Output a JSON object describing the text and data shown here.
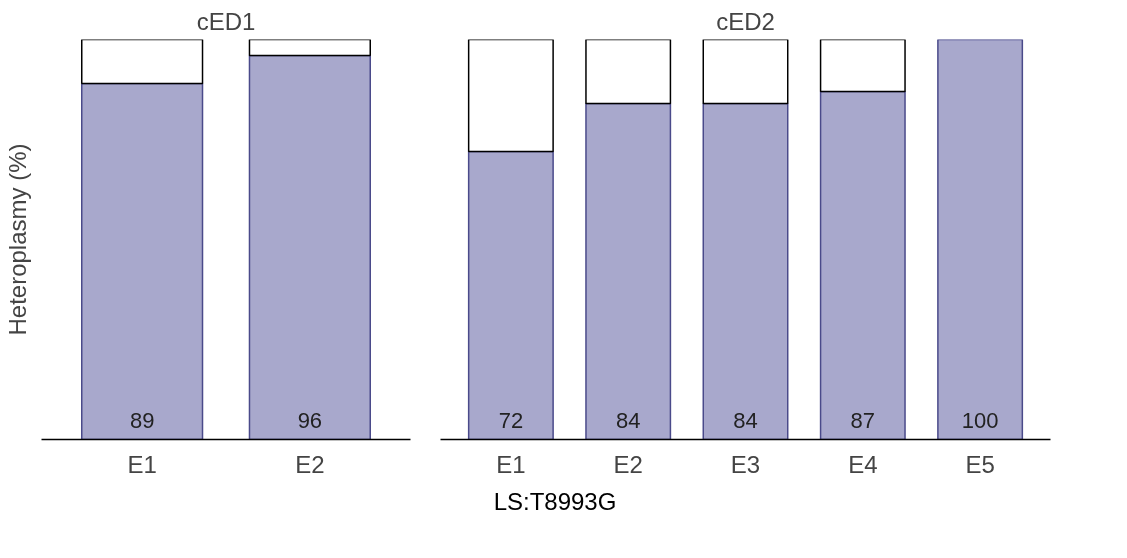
{
  "chart_data": [
    {
      "type": "bar",
      "title": "cED1",
      "ylabel": "Heteroplasmy (%)",
      "categories": [
        "E1",
        "E2"
      ],
      "stacked": true,
      "ylim": [
        0,
        100
      ],
      "tick_labels": "x",
      "grid": false,
      "series": [
        {
          "color": "#a8a8cc",
          "values": [
            89,
            96
          ],
          "value_labels": [
            "89",
            "96"
          ]
        },
        {
          "color": "#ffffff",
          "values": [
            11,
            4
          ]
        }
      ]
    },
    {
      "type": "bar",
      "title": "cED2",
      "categories": [
        "E1",
        "E2",
        "E3",
        "E4",
        "E5"
      ],
      "stacked": true,
      "ylim": [
        0,
        100
      ],
      "tick_labels": "x",
      "grid": false,
      "annotations": [
        "LS:T8993G"
      ],
      "series": [
        {
          "color": "#a8a8cc",
          "values": [
            72,
            84,
            84,
            87,
            100
          ],
          "value_labels": [
            "72",
            "84",
            "84",
            "87",
            "100"
          ]
        },
        {
          "color": "#ffffff",
          "values": [
            28,
            16,
            16,
            13,
            0
          ]
        }
      ]
    }
  ]
}
